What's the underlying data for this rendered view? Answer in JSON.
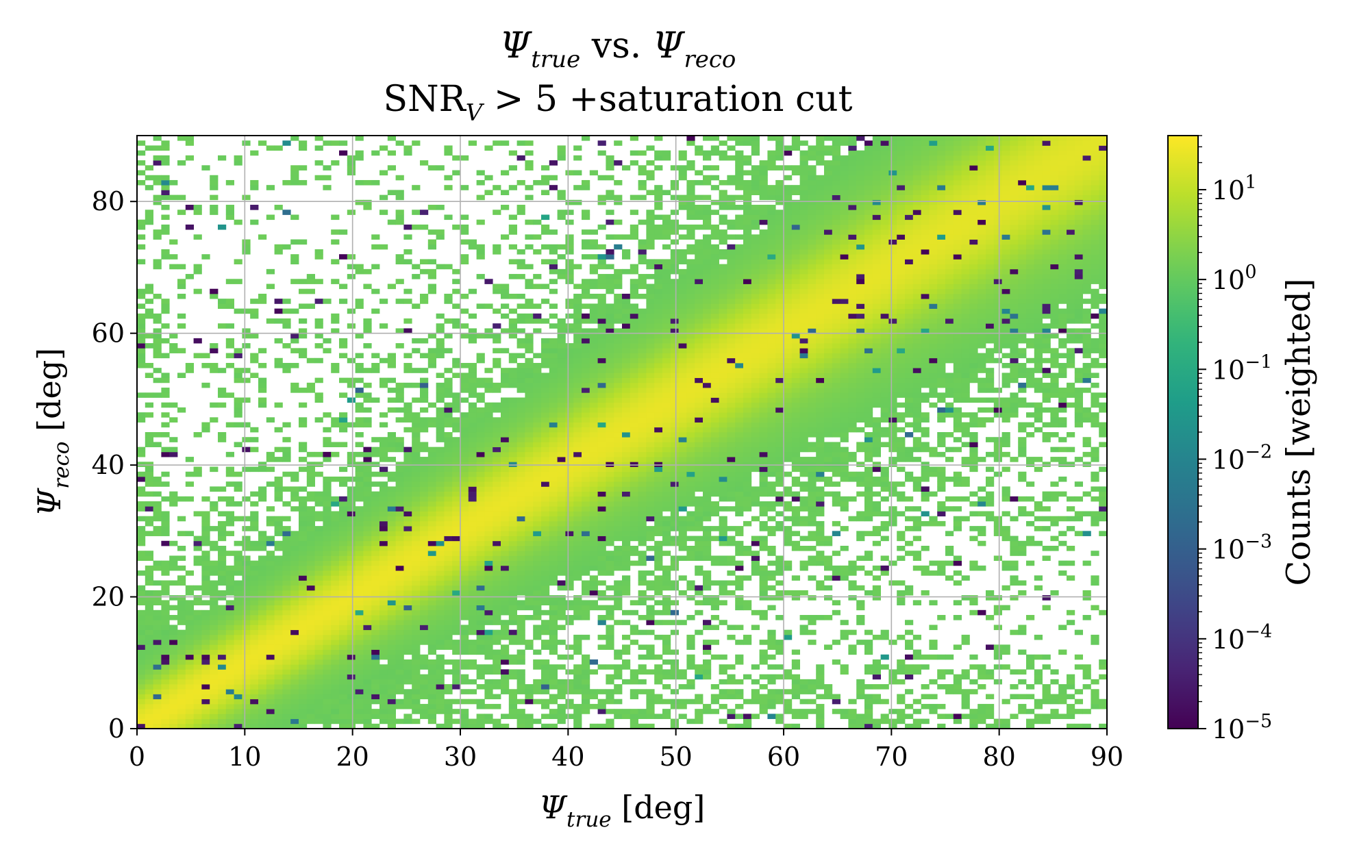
{
  "chart_data": {
    "type": "heatmap",
    "title_line1": "Ψ_true vs. Ψ_reco",
    "title_line2": "SNR_V > 5 +saturation cut",
    "xlabel": "Ψ_true [deg]",
    "ylabel": "Ψ_reco [deg]",
    "xlim": [
      0,
      90
    ],
    "ylim": [
      0,
      90
    ],
    "x_ticks": [
      0,
      10,
      20,
      30,
      40,
      50,
      60,
      70,
      80,
      90
    ],
    "y_ticks": [
      0,
      20,
      40,
      60,
      80
    ],
    "bins": [
      120,
      120
    ],
    "grid": true,
    "colorbar": {
      "label": "Counts [weighted]",
      "scale": "log",
      "colormap": "viridis",
      "range": [
        1e-05,
        40
      ],
      "tick_values": [
        1e-05,
        0.0001,
        0.001,
        0.01,
        0.1,
        1,
        10
      ],
      "tick_labels": [
        "10^−5",
        "10^−4",
        "10^−3",
        "10^−2",
        "10^−1",
        "10^0",
        "10^1"
      ]
    },
    "diagonal": {
      "slope": 1,
      "peak_counts": 25,
      "width_deg": 2.5
    },
    "background_counts": 1.2,
    "colors": {
      "grid": "#b0b0b0",
      "empty": "#ffffff"
    }
  }
}
